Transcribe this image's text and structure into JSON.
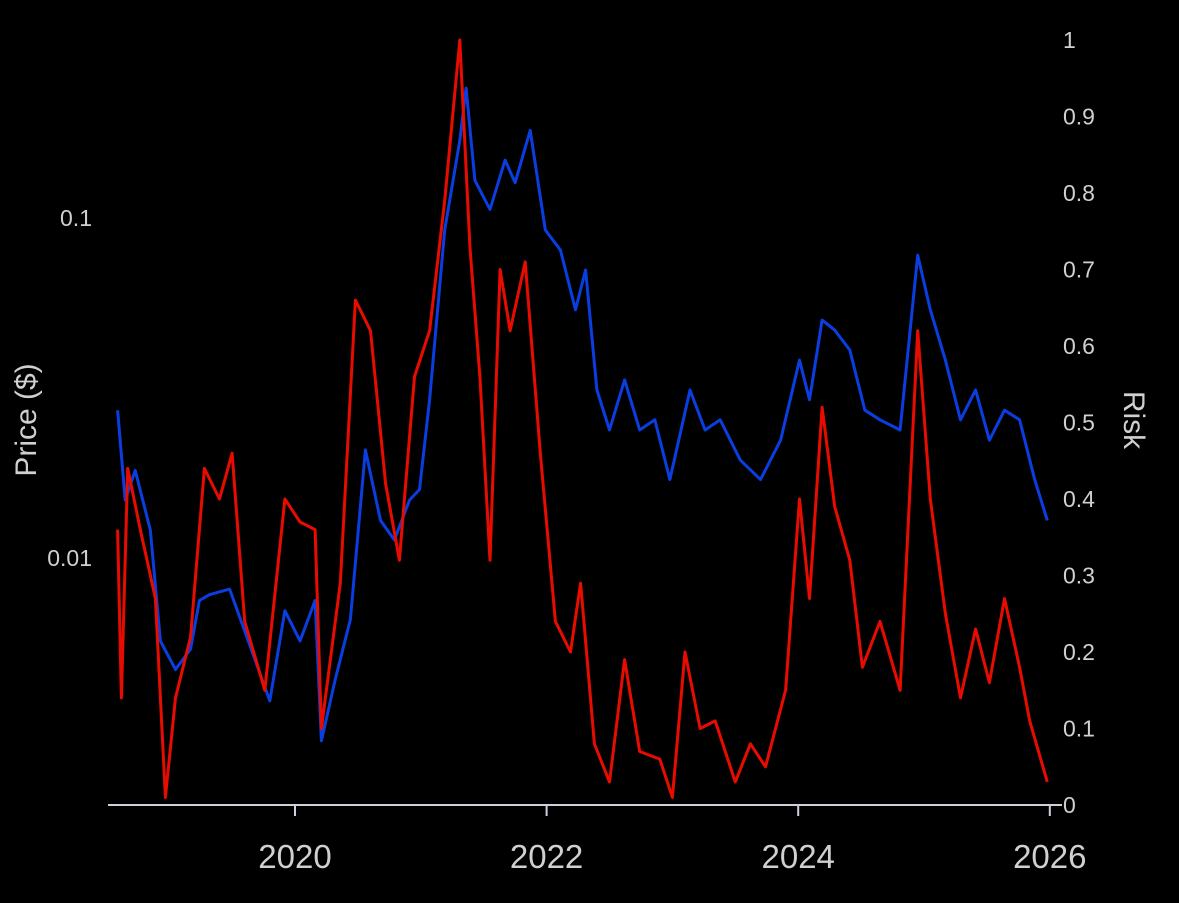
{
  "chart_data": {
    "type": "line",
    "title": "",
    "xlabel": "",
    "ylabel_left": "Price ($)",
    "ylabel_right": "Risk",
    "x_ticks": [
      "2020",
      "2022",
      "2024",
      "2026"
    ],
    "x_tick_values": [
      2020,
      2022,
      2024,
      2026
    ],
    "xlim": [
      2018.55,
      2026.05
    ],
    "y_left_scale": "log",
    "y_left_ticks": [
      "0.01",
      "0.1"
    ],
    "y_left_tick_values": [
      0.01,
      0.1
    ],
    "y_left_lim": [
      0.00188,
      0.338
    ],
    "y_right_ticks": [
      "0",
      "0.1",
      "0.2",
      "0.3",
      "0.4",
      "0.5",
      "0.6",
      "0.7",
      "0.8",
      "0.9",
      "1"
    ],
    "y_right_lim": [
      0,
      1
    ],
    "grid": false,
    "background": "#000000",
    "series": [
      {
        "axis": "left",
        "color": "#0a3ee0",
        "points": [
          [
            2018.59,
            0.0272
          ],
          [
            2018.65,
            0.0148
          ],
          [
            2018.73,
            0.0181
          ],
          [
            2018.85,
            0.0121
          ],
          [
            2018.93,
            0.0057
          ],
          [
            2019.05,
            0.0047
          ],
          [
            2019.17,
            0.0054
          ],
          [
            2019.24,
            0.0075
          ],
          [
            2019.32,
            0.0078
          ],
          [
            2019.48,
            0.0081
          ],
          [
            2019.6,
            0.0061
          ],
          [
            2019.8,
            0.0038
          ],
          [
            2019.92,
            0.007
          ],
          [
            2020.04,
            0.0057
          ],
          [
            2020.16,
            0.0075
          ],
          [
            2020.21,
            0.0029
          ],
          [
            2020.32,
            0.0044
          ],
          [
            2020.44,
            0.0066
          ],
          [
            2020.56,
            0.0208
          ],
          [
            2020.68,
            0.0129
          ],
          [
            2020.79,
            0.0113
          ],
          [
            2020.91,
            0.0148
          ],
          [
            2020.99,
            0.0159
          ],
          [
            2021.07,
            0.0292
          ],
          [
            2021.19,
            0.0922
          ],
          [
            2021.31,
            0.169
          ],
          [
            2021.36,
            0.241
          ],
          [
            2021.43,
            0.129
          ],
          [
            2021.55,
            0.106
          ],
          [
            2021.67,
            0.148
          ],
          [
            2021.75,
            0.127
          ],
          [
            2021.87,
            0.181
          ],
          [
            2021.99,
            0.0922
          ],
          [
            2022.11,
            0.0805
          ],
          [
            2022.23,
            0.0537
          ],
          [
            2022.31,
            0.0703
          ],
          [
            2022.4,
            0.0312
          ],
          [
            2022.5,
            0.0238
          ],
          [
            2022.62,
            0.0334
          ],
          [
            2022.74,
            0.0238
          ],
          [
            2022.86,
            0.0255
          ],
          [
            2022.98,
            0.017
          ],
          [
            2023.14,
            0.0312
          ],
          [
            2023.26,
            0.0238
          ],
          [
            2023.38,
            0.0255
          ],
          [
            2023.54,
            0.0194
          ],
          [
            2023.7,
            0.017
          ],
          [
            2023.86,
            0.0222
          ],
          [
            2024.01,
            0.0382
          ],
          [
            2024.09,
            0.0292
          ],
          [
            2024.19,
            0.0501
          ],
          [
            2024.29,
            0.0468
          ],
          [
            2024.41,
            0.0409
          ],
          [
            2024.53,
            0.0272
          ],
          [
            2024.65,
            0.0255
          ],
          [
            2024.81,
            0.0238
          ],
          [
            2024.95,
            0.0778
          ],
          [
            2025.05,
            0.0537
          ],
          [
            2025.17,
            0.0382
          ],
          [
            2025.29,
            0.0255
          ],
          [
            2025.41,
            0.0312
          ],
          [
            2025.52,
            0.0222
          ],
          [
            2025.64,
            0.0272
          ],
          [
            2025.76,
            0.0255
          ],
          [
            2025.88,
            0.017
          ],
          [
            2025.98,
            0.0129
          ]
        ]
      },
      {
        "axis": "right",
        "color": "#e80c00",
        "points": [
          [
            2018.59,
            0.36
          ],
          [
            2018.62,
            0.14
          ],
          [
            2018.67,
            0.44
          ],
          [
            2018.77,
            0.36
          ],
          [
            2018.89,
            0.27
          ],
          [
            2018.97,
            0.01
          ],
          [
            2019.05,
            0.14
          ],
          [
            2019.17,
            0.22
          ],
          [
            2019.28,
            0.44
          ],
          [
            2019.4,
            0.4
          ],
          [
            2019.5,
            0.46
          ],
          [
            2019.6,
            0.24
          ],
          [
            2019.76,
            0.15
          ],
          [
            2019.92,
            0.4
          ],
          [
            2020.04,
            0.37
          ],
          [
            2020.16,
            0.36
          ],
          [
            2020.21,
            0.1
          ],
          [
            2020.36,
            0.29
          ],
          [
            2020.48,
            0.66
          ],
          [
            2020.6,
            0.62
          ],
          [
            2020.72,
            0.42
          ],
          [
            2020.83,
            0.32
          ],
          [
            2020.95,
            0.56
          ],
          [
            2021.07,
            0.62
          ],
          [
            2021.19,
            0.79
          ],
          [
            2021.31,
            1.0
          ],
          [
            2021.39,
            0.73
          ],
          [
            2021.47,
            0.56
          ],
          [
            2021.55,
            0.32
          ],
          [
            2021.63,
            0.7
          ],
          [
            2021.71,
            0.62
          ],
          [
            2021.83,
            0.71
          ],
          [
            2021.95,
            0.46
          ],
          [
            2022.07,
            0.24
          ],
          [
            2022.19,
            0.2
          ],
          [
            2022.27,
            0.29
          ],
          [
            2022.38,
            0.08
          ],
          [
            2022.5,
            0.03
          ],
          [
            2022.62,
            0.19
          ],
          [
            2022.74,
            0.07
          ],
          [
            2022.9,
            0.06
          ],
          [
            2023.0,
            0.01
          ],
          [
            2023.1,
            0.2
          ],
          [
            2023.22,
            0.1
          ],
          [
            2023.34,
            0.11
          ],
          [
            2023.5,
            0.03
          ],
          [
            2023.62,
            0.08
          ],
          [
            2023.74,
            0.05
          ],
          [
            2023.9,
            0.15
          ],
          [
            2024.01,
            0.4
          ],
          [
            2024.09,
            0.27
          ],
          [
            2024.19,
            0.52
          ],
          [
            2024.29,
            0.39
          ],
          [
            2024.41,
            0.32
          ],
          [
            2024.51,
            0.18
          ],
          [
            2024.65,
            0.24
          ],
          [
            2024.81,
            0.15
          ],
          [
            2024.95,
            0.62
          ],
          [
            2025.05,
            0.4
          ],
          [
            2025.17,
            0.25
          ],
          [
            2025.29,
            0.14
          ],
          [
            2025.41,
            0.23
          ],
          [
            2025.52,
            0.16
          ],
          [
            2025.64,
            0.27
          ],
          [
            2025.76,
            0.18
          ],
          [
            2025.84,
            0.11
          ],
          [
            2025.98,
            0.03
          ]
        ]
      }
    ]
  }
}
